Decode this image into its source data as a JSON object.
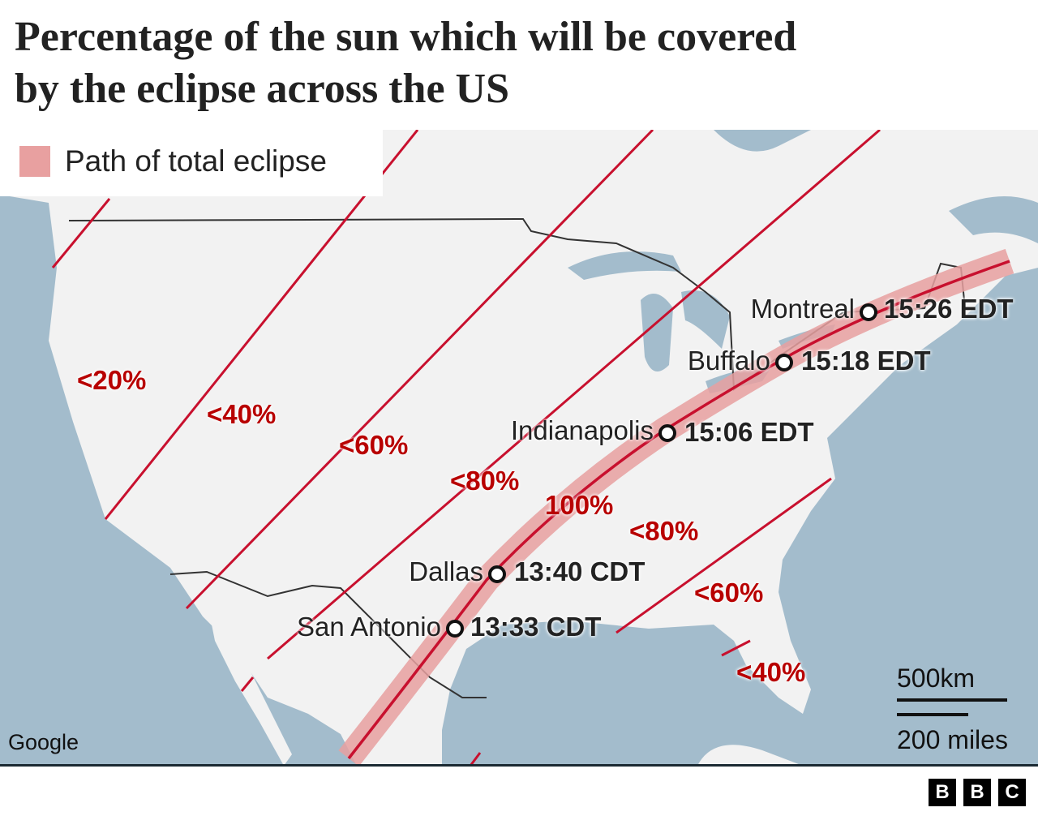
{
  "title": "Percentage of the sun which will be covered by the eclipse across the US",
  "legend": {
    "label": "Path of total eclipse",
    "color": "#e8a0a0"
  },
  "zones": [
    "<20%",
    "<40%",
    "<60%",
    "<80%",
    "100%",
    "<80%",
    "<60%",
    "<40%"
  ],
  "cities": [
    {
      "name": "Montreal",
      "time": "15:26 EDT"
    },
    {
      "name": "Buffalo",
      "time": "15:18 EDT"
    },
    {
      "name": "Indianapolis",
      "time": "15:06 EDT"
    },
    {
      "name": "Dallas",
      "time": "13:40 CDT"
    },
    {
      "name": "San Antonio",
      "time": "13:33 CDT"
    }
  ],
  "attribution": "Google",
  "scale": {
    "km": "500km",
    "miles": "200 miles"
  },
  "logo": [
    "B",
    "B",
    "C"
  ],
  "colors": {
    "ocean": "#a3bccc",
    "land": "#f2f2f2",
    "line": "#c8102e",
    "band": "#e8a0a0"
  }
}
